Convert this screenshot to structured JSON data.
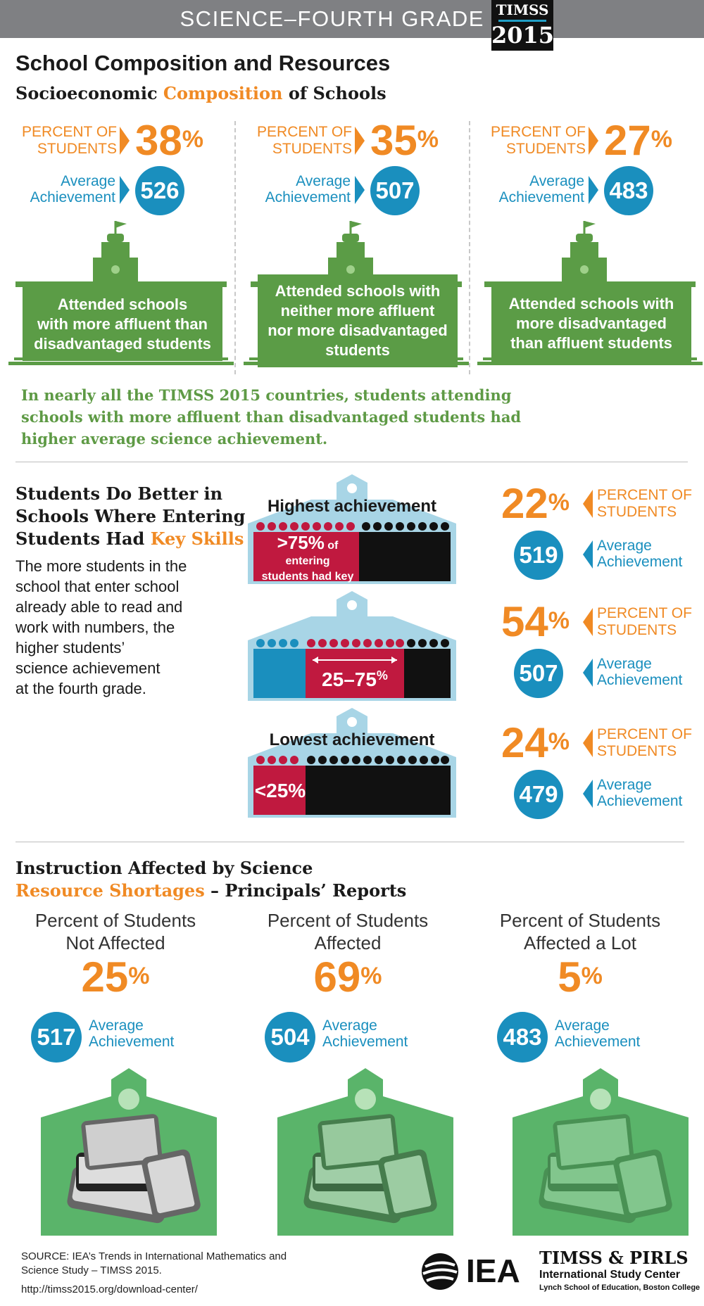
{
  "header": {
    "title": "SCIENCE–FOURTH GRADE",
    "logo_top": "TIMSS",
    "logo_year": "2015"
  },
  "section1": {
    "title": "School Composition and Resources",
    "subtitle_pre": "Socioeconomic ",
    "subtitle_hl": "Composition",
    "subtitle_post": " of Schools",
    "percent_label_1": "PERCENT OF",
    "percent_label_2": "STUDENTS",
    "avg_label_1": "Average",
    "avg_label_2": "Achievement",
    "columns": [
      {
        "pct": "38",
        "avg": "526",
        "box": [
          "Attended schools",
          "with more affluent than",
          "disadvantaged students"
        ]
      },
      {
        "pct": "35",
        "avg": "507",
        "box": [
          "Attended schools with",
          "neither more affluent",
          "nor more disadvantaged",
          "students"
        ]
      },
      {
        "pct": "27",
        "avg": "483",
        "box": [
          "Attended schools with",
          "more disadvantaged",
          "than affluent students"
        ]
      }
    ],
    "summary": [
      "In nearly all the TIMSS 2015 countries, students attending",
      "schools with more affluent than disadvantaged students had",
      "higher average science achievement."
    ]
  },
  "section2": {
    "title_1": "Students Do Better in",
    "title_2": "Schools Where Entering",
    "title_3_pre": "Students Had ",
    "title_3_hl": "Key Skills",
    "body": [
      "The more students in the",
      "school that enter school",
      "already able to read and",
      "work with numbers, the",
      "higher students’",
      "science achievement",
      "at the fourth grade."
    ],
    "highest_label": "Highest achievement",
    "lowest_label": "Lowest achievement",
    "band_high_big": ">75%",
    "band_high_small_1": "of entering",
    "band_high_small_2": "students had key skills",
    "band_mid": "25–75",
    "band_mid_pct": "%",
    "band_low": "<25%",
    "rows": [
      {
        "pct": "22",
        "avg": "519"
      },
      {
        "pct": "54",
        "avg": "507"
      },
      {
        "pct": "24",
        "avg": "479"
      }
    ]
  },
  "section3": {
    "title_1": "Instruction Affected by Science",
    "title_2_hl": "Resource Shortages",
    "title_2_post": " – Principals’ Reports",
    "columns": [
      {
        "head_1": "Percent of Students",
        "head_2": "Not Affected",
        "pct": "25",
        "avg": "517"
      },
      {
        "head_1": "Percent of Students",
        "head_2": "Affected",
        "pct": "69",
        "avg": "504"
      },
      {
        "head_1": "Percent of Students",
        "head_2": "Affected a Lot",
        "pct": "5",
        "avg": "483"
      }
    ]
  },
  "footer": {
    "source_1": "SOURCE: IEA’s Trends in International Mathematics and",
    "source_2": "Science Study – TIMSS 2015.",
    "url": "http://timss2015.org/download-center/",
    "iea": "IEA",
    "isc_1": "TIMSS & PIRLS",
    "isc_2": "International Study Center",
    "isc_3": "Lynch School of Education, Boston College"
  },
  "percent_sign": "%"
}
